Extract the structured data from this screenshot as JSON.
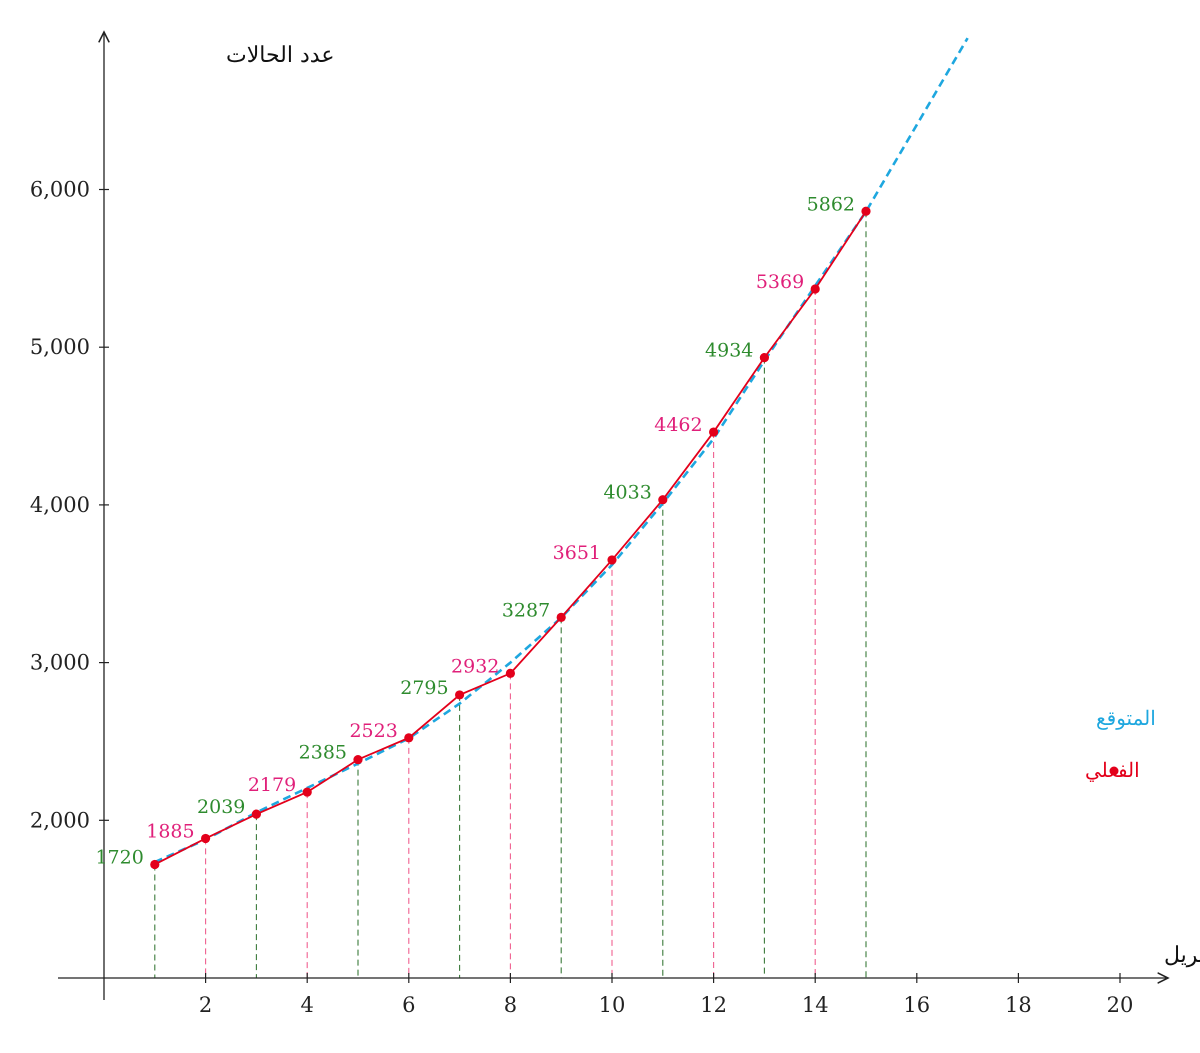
{
  "chart_data": {
    "type": "line",
    "xlabel": "إبريل",
    "ylabel": "عدد الحالات",
    "xlim": [
      -0.9,
      21
    ],
    "ylim": [
      1000,
      7000
    ],
    "xticks": [
      2,
      4,
      6,
      8,
      10,
      12,
      14,
      16,
      18,
      20
    ],
    "yticks": [
      2000,
      3000,
      4000,
      5000,
      6000
    ],
    "ytick_labels": [
      "2,000",
      "3,000",
      "4,000",
      "5,000",
      "6,000"
    ],
    "grid": false,
    "legend_position": "right",
    "legend": [
      {
        "label": "المتوقع",
        "prefix": "-",
        "color": "#1ea7df"
      },
      {
        "label": "الفعلي",
        "color": "#e3001b"
      }
    ],
    "series": [
      {
        "name": "الفعلي",
        "color": "#e3001b",
        "x": [
          1,
          2,
          3,
          4,
          5,
          6,
          7,
          8,
          9,
          10,
          11,
          12,
          13,
          14,
          15
        ],
        "values": [
          1720,
          1885,
          2039,
          2179,
          2385,
          2523,
          2795,
          2932,
          3287,
          3651,
          4033,
          4462,
          4934,
          5369,
          5862
        ],
        "labels": [
          "1720",
          "1885",
          "2039",
          "2179",
          "2385",
          "2523",
          "2795",
          "2932",
          "3287",
          "3651",
          "4033",
          "4462",
          "4934",
          "5369",
          "5862"
        ]
      },
      {
        "name": "المتوقع",
        "color": "#1ea7df",
        "x": [
          1,
          2,
          3,
          4,
          5,
          6,
          7,
          8,
          9,
          10,
          11,
          12,
          13,
          14,
          15,
          16,
          17
        ],
        "values": [
          1735,
          1878,
          2050,
          2205,
          2360,
          2520,
          2740,
          3000,
          3285,
          3620,
          4010,
          4420,
          4915,
          5390,
          5860,
          6410,
          6960
        ]
      }
    ],
    "label_colors": {
      "odd": "#2e8b2e",
      "even": "#e0207a"
    },
    "drop_line_colors": {
      "odd": "#3a7a3a",
      "even": "#f06090"
    }
  }
}
